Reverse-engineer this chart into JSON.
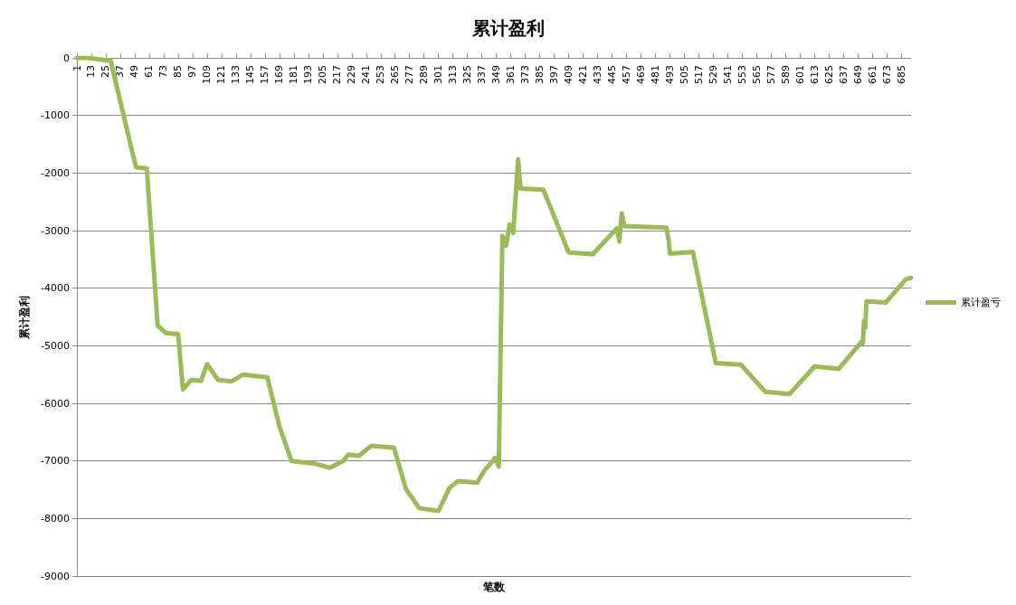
{
  "chart_data": {
    "type": "line",
    "title": "累计盈利",
    "xlabel": "笔数",
    "ylabel": "累计盈利",
    "x": [
      1,
      10,
      29,
      50,
      59,
      68,
      75,
      85,
      89,
      96,
      104,
      109,
      118,
      129,
      139,
      159,
      169,
      179,
      199,
      211,
      222,
      226,
      235,
      245,
      264,
      274,
      285,
      301,
      310,
      317,
      333,
      339,
      348,
      351,
      354,
      357,
      360,
      363,
      367,
      369,
      388,
      409,
      429,
      449,
      451,
      453,
      455,
      490,
      492,
      493,
      512,
      531,
      552,
      572,
      592,
      613,
      633,
      652,
      653,
      654,
      655,
      656,
      672,
      689,
      693
    ],
    "series": [
      {
        "name": "累计盈亏",
        "color": "#9bbb59",
        "values": [
          0,
          0,
          -50,
          -1900,
          -1920,
          -4650,
          -4780,
          -4800,
          -5760,
          -5590,
          -5610,
          -5320,
          -5590,
          -5620,
          -5500,
          -5550,
          -6400,
          -7000,
          -7050,
          -7120,
          -7000,
          -6890,
          -6910,
          -6740,
          -6770,
          -7490,
          -7820,
          -7870,
          -7470,
          -7350,
          -7380,
          -7170,
          -6950,
          -7100,
          -3090,
          -3260,
          -2890,
          -3040,
          -1760,
          -2270,
          -2290,
          -3380,
          -3410,
          -2960,
          -3190,
          -2700,
          -2920,
          -2950,
          -3180,
          -3400,
          -3370,
          -5300,
          -5330,
          -5800,
          -5840,
          -5360,
          -5400,
          -4930,
          -4960,
          -4570,
          -4690,
          -4230,
          -4250,
          -3840,
          -3820
        ]
      }
    ],
    "xlim": [
      1,
      693
    ],
    "xticks": [
      1,
      13,
      25,
      37,
      49,
      61,
      73,
      85,
      97,
      109,
      121,
      133,
      145,
      157,
      169,
      181,
      193,
      205,
      217,
      229,
      241,
      253,
      265,
      277,
      289,
      301,
      313,
      325,
      337,
      349,
      361,
      373,
      385,
      397,
      409,
      421,
      433,
      445,
      457,
      469,
      481,
      493,
      505,
      517,
      529,
      541,
      553,
      565,
      577,
      589,
      601,
      613,
      625,
      637,
      649,
      661,
      673,
      685
    ],
    "ylim": [
      -9000,
      0
    ],
    "yticks": [
      -9000,
      -8000,
      -7000,
      -6000,
      -5000,
      -4000,
      -3000,
      -2000,
      -1000,
      0
    ],
    "grid": "y",
    "legend": "right",
    "marker": "none",
    "line_style": "solid"
  }
}
